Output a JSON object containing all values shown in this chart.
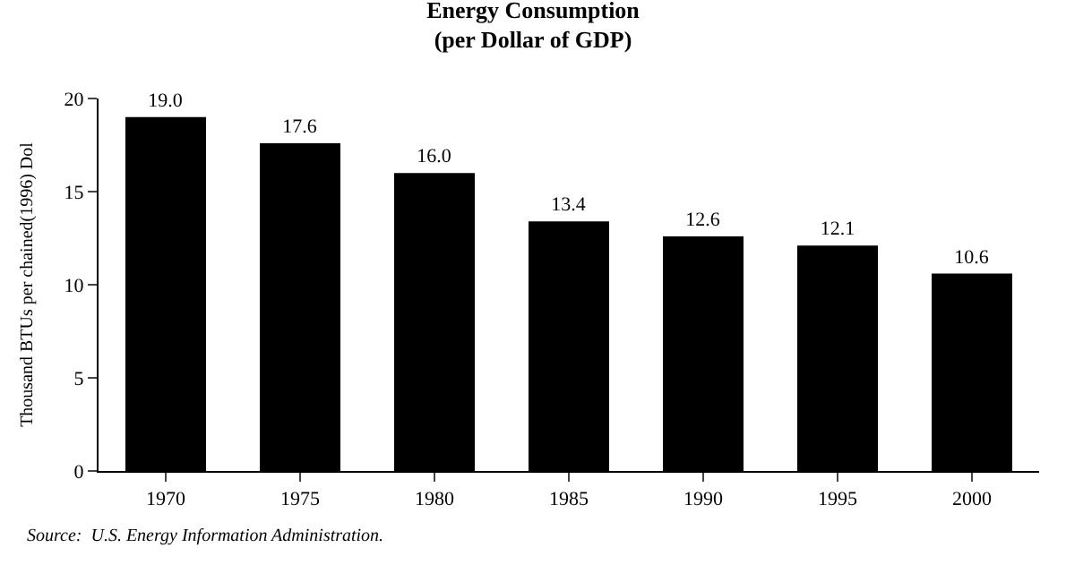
{
  "chart_data": {
    "type": "bar",
    "title": "Energy Consumption",
    "subtitle": "(per Dollar of GDP)",
    "ylabel": "Thousand BTUs per chained(1996) Dol",
    "categories": [
      "1970",
      "1975",
      "1980",
      "1985",
      "1990",
      "1995",
      "2000"
    ],
    "values": [
      19.0,
      17.6,
      16.0,
      13.4,
      12.6,
      12.1,
      10.6
    ],
    "color": "#000000",
    "value_labels": [
      "19.0",
      "17.6",
      "16.0",
      "13.4",
      "12.6",
      "12.1",
      "10.6"
    ],
    "ylim": [
      0,
      20
    ],
    "yticks": [
      0,
      5,
      10,
      15,
      20
    ],
    "annotations": [
      "Source:  U.S. Energy Information Administration."
    ]
  }
}
